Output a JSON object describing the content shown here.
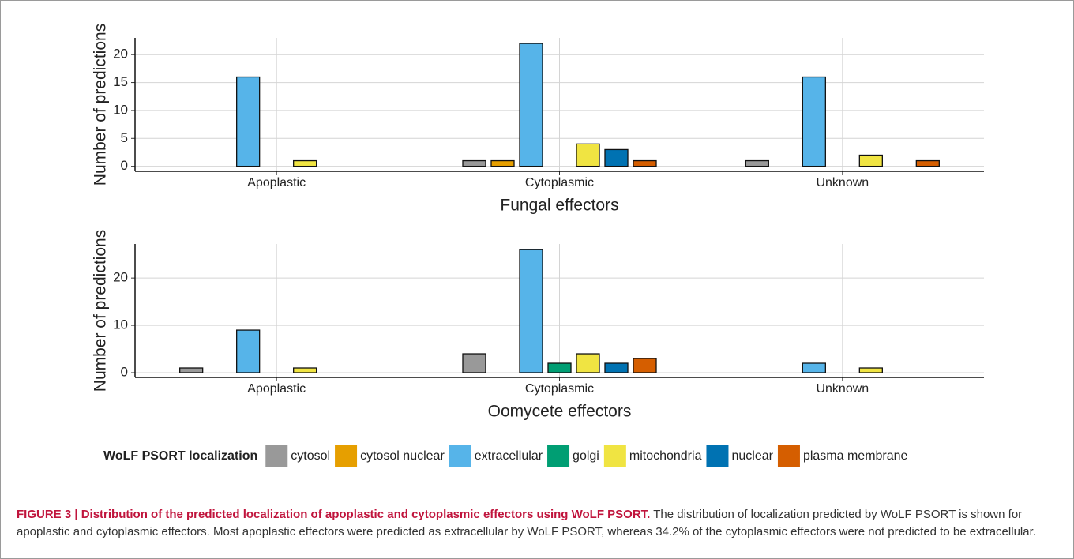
{
  "chart_data": [
    {
      "type": "bar",
      "title": "Fungal effectors",
      "ylabel": "Number of predictions",
      "categories": [
        "Apoplastic",
        "Cytoplasmic",
        "Unknown"
      ],
      "series": [
        {
          "name": "cytosol",
          "color": "#999999",
          "values": [
            0,
            1,
            1
          ]
        },
        {
          "name": "cytosol nuclear",
          "color": "#E69F00",
          "values": [
            0,
            1,
            0
          ]
        },
        {
          "name": "extracellular",
          "color": "#56B4E9",
          "values": [
            16,
            22,
            16
          ]
        },
        {
          "name": "golgi",
          "color": "#009E73",
          "values": [
            0,
            0,
            0
          ]
        },
        {
          "name": "mitochondria",
          "color": "#F0E442",
          "values": [
            1,
            4,
            2
          ]
        },
        {
          "name": "nuclear",
          "color": "#0072B2",
          "values": [
            0,
            3,
            0
          ]
        },
        {
          "name": "plasma membrane",
          "color": "#D55E00",
          "values": [
            0,
            1,
            1
          ]
        }
      ],
      "ylim": [
        -0.9,
        23
      ],
      "yticks": [
        0,
        5,
        10,
        15,
        20
      ],
      "grid": true
    },
    {
      "type": "bar",
      "title": "Oomycete effectors",
      "ylabel": "Number of predictions",
      "categories": [
        "Apoplastic",
        "Cytoplasmic",
        "Unknown"
      ],
      "series": [
        {
          "name": "cytosol",
          "color": "#999999",
          "values": [
            1,
            4,
            0
          ]
        },
        {
          "name": "cytosol nuclear",
          "color": "#E69F00",
          "values": [
            0,
            0,
            0
          ]
        },
        {
          "name": "extracellular",
          "color": "#56B4E9",
          "values": [
            9,
            26,
            2
          ]
        },
        {
          "name": "golgi",
          "color": "#009E73",
          "values": [
            0,
            2,
            0
          ]
        },
        {
          "name": "mitochondria",
          "color": "#F0E442",
          "values": [
            1,
            4,
            1
          ]
        },
        {
          "name": "nuclear",
          "color": "#0072B2",
          "values": [
            0,
            2,
            0
          ]
        },
        {
          "name": "plasma membrane",
          "color": "#D55E00",
          "values": [
            0,
            3,
            0
          ]
        }
      ],
      "ylim": [
        -1,
        27.2
      ],
      "yticks": [
        0,
        10,
        20
      ],
      "grid": true
    }
  ],
  "legend_title": "WoLF PSORT localization",
  "caption": {
    "label": "FIGURE 3 | Distribution of the predicted localization of apoplastic and cytoplasmic effectors using WoLF PSORT.",
    "text": "The distribution of localization predicted by WoLF PSORT is shown for apoplastic and cytoplasmic effectors. Most apoplastic effectors were predicted as extracellular by WoLF PSORT, whereas 34.2% of the cytoplasmic effectors were not predicted to be extracellular."
  }
}
